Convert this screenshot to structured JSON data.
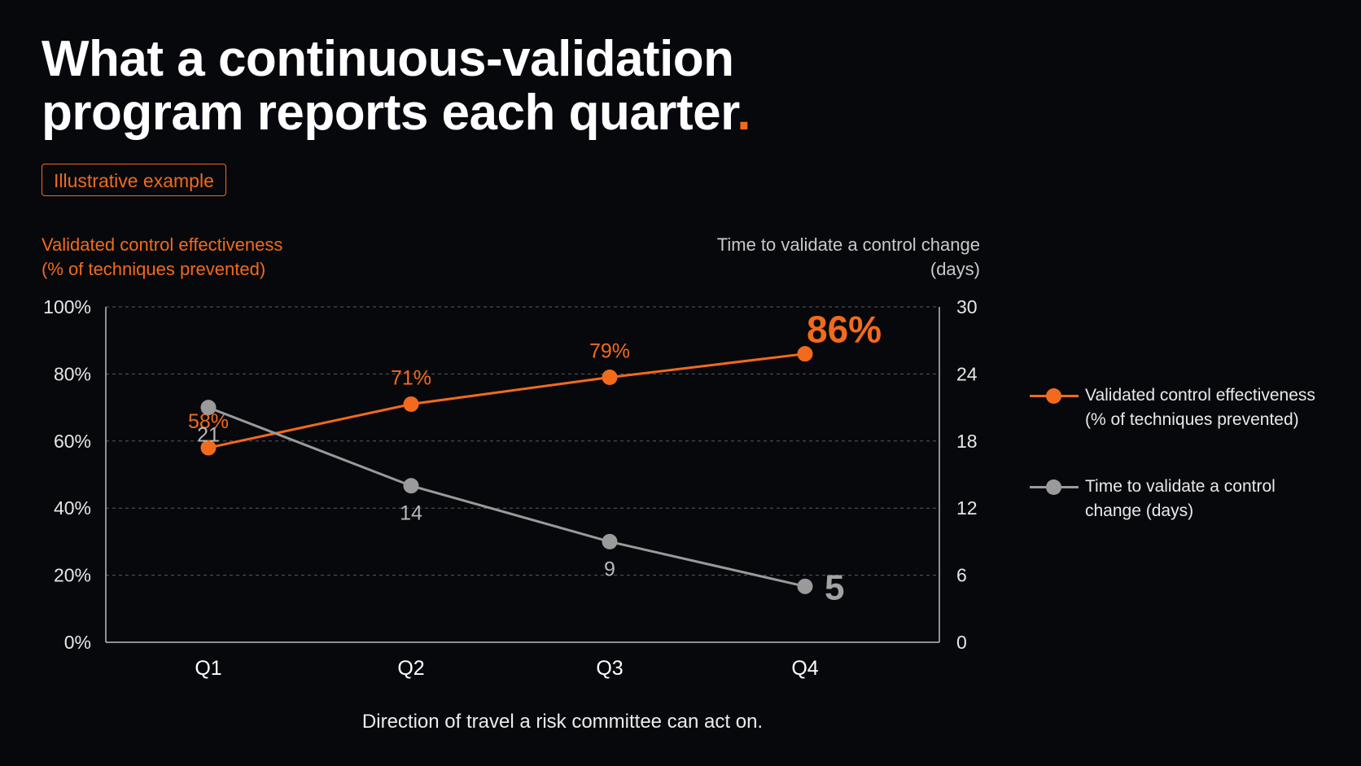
{
  "title": {
    "line1": "What a continuous-validation",
    "line2": "program reports each quarter",
    "accent": "."
  },
  "badge": "Illustrative example",
  "caption": "Direction of travel a risk committee can act on.",
  "colors": {
    "accent": "#f26a1b",
    "secondary": "#9a9a9a",
    "background": "#07080c"
  },
  "chart_data": {
    "type": "line",
    "categories": [
      "Q1",
      "Q2",
      "Q3",
      "Q4"
    ],
    "y_left": {
      "label_line1": "Validated control effectiveness",
      "label_line2": "(% of techniques prevented)",
      "ylim": [
        0,
        100
      ],
      "ticks": [
        "0%",
        "20%",
        "40%",
        "60%",
        "80%",
        "100%"
      ],
      "tick_values": [
        0,
        20,
        40,
        60,
        80,
        100
      ]
    },
    "y_right": {
      "label_line1": "Time to validate a control change",
      "label_line2": "(days)",
      "ylim": [
        0,
        30
      ],
      "ticks": [
        "0",
        "6",
        "12",
        "18",
        "24",
        "30"
      ],
      "tick_values": [
        0,
        6,
        12,
        18,
        24,
        30
      ]
    },
    "grid": true,
    "legend_position": "right",
    "series": [
      {
        "name_line1": "Validated control effectiveness",
        "name_line2": "(% of techniques prevented)",
        "axis": "left",
        "color": "#f26a1b",
        "values": [
          58,
          71,
          79,
          86
        ],
        "labels": [
          "58%",
          "71%",
          "79%",
          "86%"
        ]
      },
      {
        "name_line1": "Time to validate a control",
        "name_line2": "change (days)",
        "axis": "right",
        "color": "#9a9a9a",
        "values": [
          21,
          14,
          9,
          5
        ],
        "labels": [
          "21",
          "14",
          "9",
          "5"
        ]
      }
    ]
  }
}
